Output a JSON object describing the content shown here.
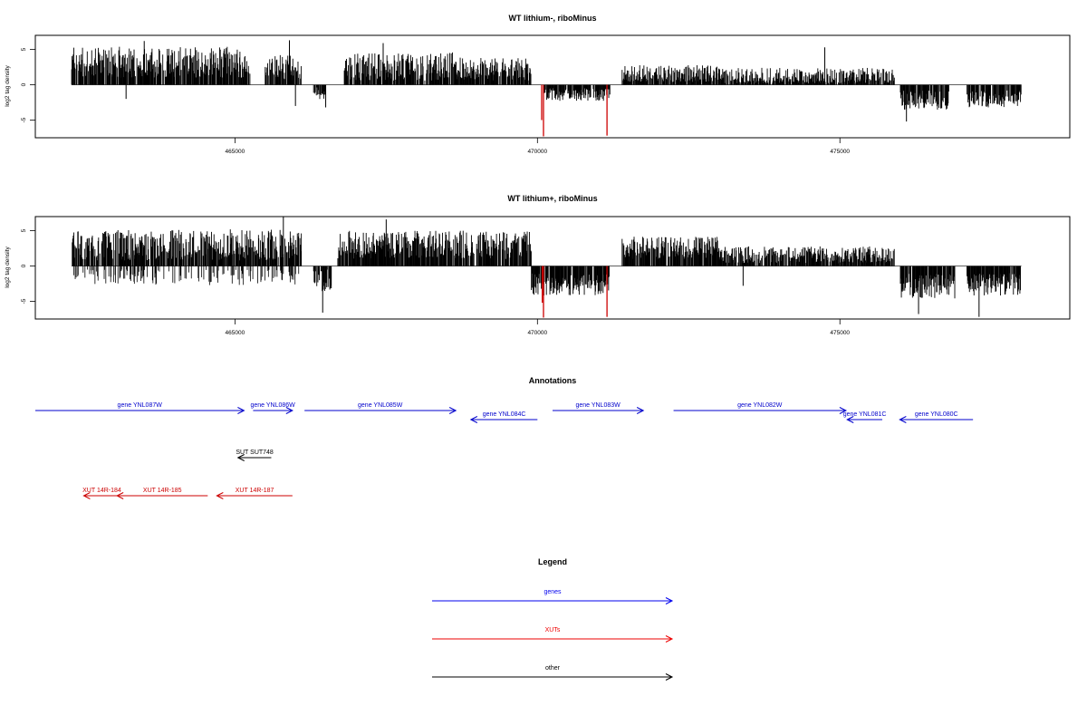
{
  "chart_data": [
    {
      "type": "bar",
      "title": "WT lithium-, riboMinus",
      "ylabel": "log2 tag density",
      "xlabel": "",
      "xlim": [
        461700,
        478800
      ],
      "ylim": [
        -7.5,
        7
      ],
      "x_ticks": [
        {
          "value": 465000,
          "label": "465000"
        },
        {
          "value": 470000,
          "label": "470000"
        },
        {
          "value": 475000,
          "label": "475000"
        }
      ],
      "y_ticks": [
        {
          "value": 5,
          "label": "5"
        },
        {
          "value": 0,
          "label": "0"
        },
        {
          "value": -5,
          "label": "-5"
        }
      ],
      "highlight_color": "#cc0000",
      "bar_color": "#000000",
      "coverage_segments": [
        {
          "start": 462300,
          "end": 465250,
          "strand": "+",
          "mean": 3.2,
          "spread": 2.2,
          "minus_mean": 0
        },
        {
          "start": 465500,
          "end": 466100,
          "strand": "+",
          "mean": 2.4,
          "spread": 1.8,
          "minus_mean": 0
        },
        {
          "start": 466300,
          "end": 466500,
          "strand": "-",
          "mean": -1.2,
          "spread": 0.9,
          "minus_mean": 0
        },
        {
          "start": 466800,
          "end": 468800,
          "strand": "+",
          "mean": 2.6,
          "spread": 2.0,
          "minus_mean": 0
        },
        {
          "start": 468800,
          "end": 469900,
          "strand": "+",
          "mean": 2.2,
          "spread": 1.6,
          "minus_mean": 0
        },
        {
          "start": 470100,
          "end": 471200,
          "strand": "-",
          "mean": -1.4,
          "spread": 0.9,
          "minus_mean": 0
        },
        {
          "start": 471400,
          "end": 473000,
          "strand": "+",
          "mean": 1.6,
          "spread": 1.2,
          "minus_mean": 0
        },
        {
          "start": 473000,
          "end": 475900,
          "strand": "+",
          "mean": 1.0,
          "spread": 1.4,
          "minus_mean": 0
        },
        {
          "start": 476000,
          "end": 476800,
          "strand": "-",
          "mean": -2.2,
          "spread": 1.4,
          "minus_mean": 0
        },
        {
          "start": 477100,
          "end": 478000,
          "strand": "-",
          "mean": -2.0,
          "spread": 1.2,
          "minus_mean": 0
        }
      ],
      "spikes": [
        {
          "x": 463500,
          "y": 6.2
        },
        {
          "x": 465900,
          "y": 6.3
        },
        {
          "x": 467450,
          "y": 5.9
        },
        {
          "x": 463200,
          "y": -2.0
        },
        {
          "x": 466000,
          "y": -3.0
        },
        {
          "x": 466500,
          "y": -3.2
        },
        {
          "x": 474750,
          "y": 5.3
        },
        {
          "x": 476100,
          "y": -5.2
        }
      ],
      "highlights": [
        {
          "x": 470100,
          "y": -7.3
        },
        {
          "x": 470070,
          "y": -5.0
        },
        {
          "x": 471150,
          "y": -7.2
        }
      ]
    },
    {
      "type": "bar",
      "title": "WT lithium+, riboMinus",
      "ylabel": "log2 tag density",
      "xlabel": "",
      "xlim": [
        461700,
        478800
      ],
      "ylim": [
        -7.5,
        7
      ],
      "x_ticks": [
        {
          "value": 465000,
          "label": "465000"
        },
        {
          "value": 470000,
          "label": "470000"
        },
        {
          "value": 475000,
          "label": "475000"
        }
      ],
      "y_ticks": [
        {
          "value": 5,
          "label": "5"
        },
        {
          "value": 0,
          "label": "0"
        },
        {
          "value": -5,
          "label": "-5"
        }
      ],
      "highlight_color": "#cc0000",
      "bar_color": "#000000",
      "coverage_segments": [
        {
          "start": 462300,
          "end": 466100,
          "strand": "+",
          "mean": 3.0,
          "spread": 2.2,
          "minus_mean": -1.6
        },
        {
          "start": 466300,
          "end": 466600,
          "strand": "-",
          "mean": -2.0,
          "spread": 1.6,
          "minus_mean": 0
        },
        {
          "start": 466700,
          "end": 469900,
          "strand": "+",
          "mean": 3.0,
          "spread": 2.0,
          "minus_mean": 0
        },
        {
          "start": 469900,
          "end": 471200,
          "strand": "-",
          "mean": -2.6,
          "spread": 1.6,
          "minus_mean": 0
        },
        {
          "start": 471400,
          "end": 473000,
          "strand": "+",
          "mean": 2.6,
          "spread": 1.6,
          "minus_mean": 0
        },
        {
          "start": 473000,
          "end": 475900,
          "strand": "+",
          "mean": 1.6,
          "spread": 1.2,
          "minus_mean": 0
        },
        {
          "start": 476000,
          "end": 476900,
          "strand": "-",
          "mean": -2.8,
          "spread": 1.8,
          "minus_mean": 0
        },
        {
          "start": 477100,
          "end": 478000,
          "strand": "-",
          "mean": -2.6,
          "spread": 1.6,
          "minus_mean": 0
        }
      ],
      "spikes": [
        {
          "x": 465800,
          "y": 7.0
        },
        {
          "x": 467500,
          "y": 6.6
        },
        {
          "x": 466450,
          "y": -6.6
        },
        {
          "x": 473400,
          "y": -2.8
        },
        {
          "x": 476300,
          "y": -6.8
        },
        {
          "x": 477300,
          "y": -7.2
        }
      ],
      "highlights": [
        {
          "x": 470100,
          "y": -7.3
        },
        {
          "x": 470080,
          "y": -5.2
        },
        {
          "x": 471150,
          "y": -7.2
        }
      ]
    }
  ],
  "annotations": {
    "title": "Annotations",
    "xlim": [
      461700,
      478800
    ],
    "genes": [
      {
        "label": "gene YNL087W",
        "start": 461700,
        "end": 465150,
        "strand": "+",
        "color": "#0000cc",
        "row": 0
      },
      {
        "label": "gene YNL086W",
        "start": 465300,
        "end": 465950,
        "strand": "+",
        "color": "#0000cc",
        "row": 0
      },
      {
        "label": "gene YNL085W",
        "start": 466150,
        "end": 468650,
        "strand": "+",
        "color": "#0000cc",
        "row": 0
      },
      {
        "label": "gene YNL084C",
        "start": 468900,
        "end": 470000,
        "strand": "-",
        "color": "#0000cc",
        "row": 1
      },
      {
        "label": "gene YNL083W",
        "start": 470250,
        "end": 471750,
        "strand": "+",
        "color": "#0000cc",
        "row": 0
      },
      {
        "label": "gene YNL082W",
        "start": 472250,
        "end": 475100,
        "strand": "+",
        "color": "#0000cc",
        "row": 0
      },
      {
        "label": "gene YNL081C",
        "start": 475120,
        "end": 475700,
        "strand": "-",
        "color": "#0000cc",
        "row": 1
      },
      {
        "label": "gene YNL080C",
        "start": 475990,
        "end": 477200,
        "strand": "-",
        "color": "#0000cc",
        "row": 1
      },
      {
        "label": "SUT SUT748",
        "start": 465050,
        "end": 465600,
        "strand": "-",
        "color": "#000000",
        "row": 2
      },
      {
        "label": "XUT 14R-184",
        "start": 462500,
        "end": 463100,
        "strand": "-",
        "color": "#cc0000",
        "row": 3
      },
      {
        "label": "XUT 14R-185",
        "start": 463050,
        "end": 464550,
        "strand": "-",
        "color": "#cc0000",
        "row": 3
      },
      {
        "label": "XUT 14R-187",
        "start": 464700,
        "end": 465950,
        "strand": "-",
        "color": "#cc0000",
        "row": 3
      }
    ]
  },
  "legend": {
    "title": "Legend",
    "items": [
      {
        "label": "genes",
        "color": "#0000ee"
      },
      {
        "label": "XUTs",
        "color": "#ee0000"
      },
      {
        "label": "other",
        "color": "#000000"
      }
    ]
  }
}
